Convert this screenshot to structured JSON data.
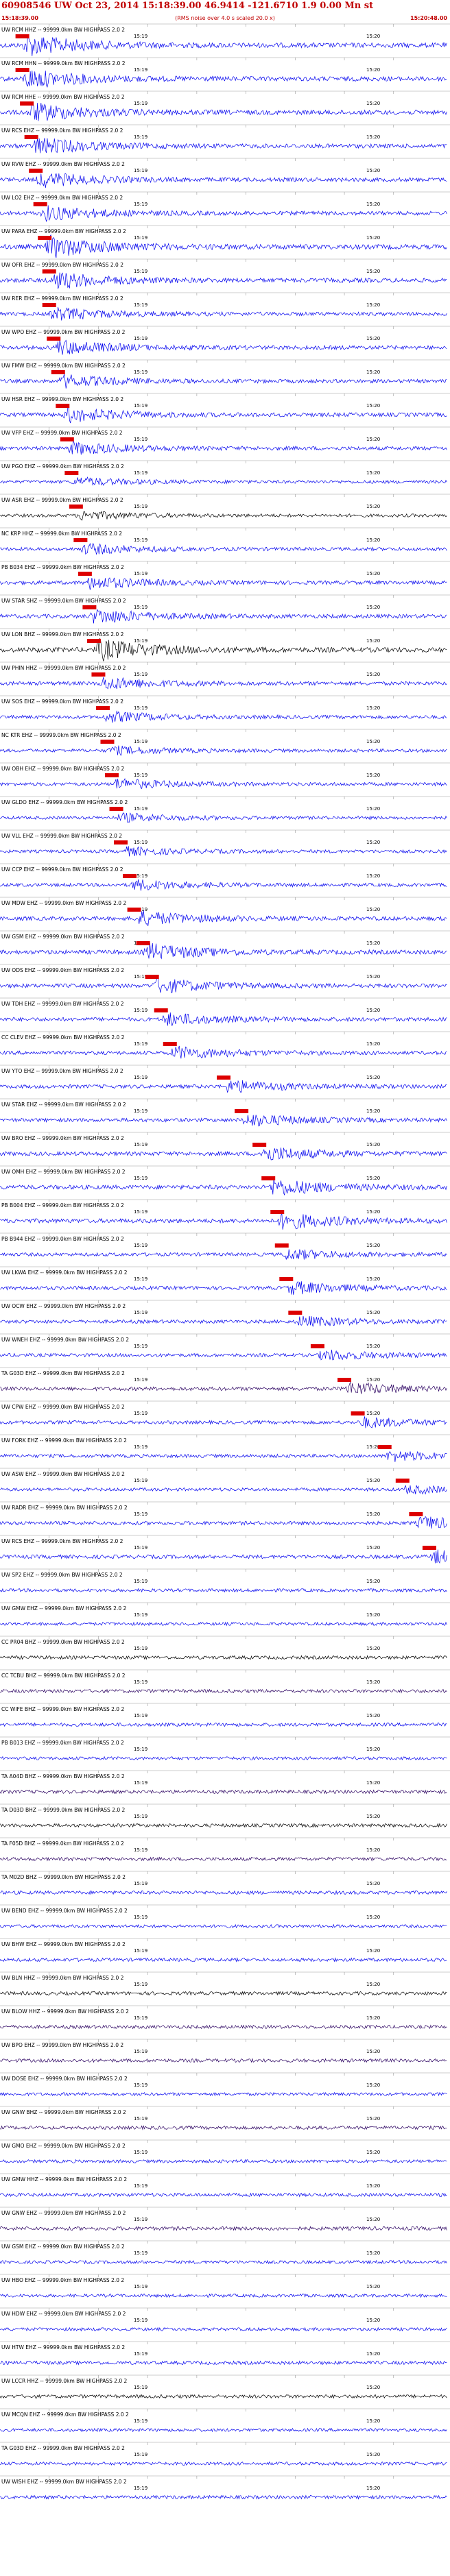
{
  "header": {
    "title": "60908546 UW Oct 23, 2014 15:18:39.00   46.9414 -121.6710   1.9 0.00 Mn st",
    "start_time": "15:18:39.00",
    "noise_note": "(RMS noise over 4.0 s scaled 20.0 x)",
    "end_time": "15:20:48.00"
  },
  "colors": {
    "blue": "#0000ee",
    "black": "#000000",
    "purple": "#2a0060",
    "label": "#000000",
    "marker": "#dd0000",
    "grid": "#9a9a9a"
  },
  "chart_data": {
    "type": "line",
    "title": "60908546 UW Oct 23, 2014 15:18:39.00   46.9414 -121.6710   1.9 0.00 Mn st",
    "time_window": [
      "15:18:39.00",
      "15:20:48.00"
    ],
    "tick_labels": [
      "15:19",
      "15:20"
    ],
    "traces": [
      {
        "label": "UW RCM HHZ -- 99999.0km BW  HIGHPASS  2.0  2",
        "color": "blue",
        "amp": 1.0,
        "pick": 0.05
      },
      {
        "label": "UW RCM HHN -- 99999.0km BW  HIGHPASS  2.0  2",
        "color": "blue",
        "amp": 0.9,
        "pick": 0.05
      },
      {
        "label": "UW RCM HHE -- 99999.0km BW  HIGHPASS  2.0  2",
        "color": "blue",
        "amp": 0.9,
        "pick": 0.06
      },
      {
        "label": "UW RCS EHZ -- 99999.0km BW  HIGHPASS  2.0  2",
        "color": "blue",
        "amp": 0.8,
        "pick": 0.07
      },
      {
        "label": "UW RVW EHZ -- 99999.0km BW  HIGHPASS  2.0  2",
        "color": "blue",
        "amp": 0.7,
        "pick": 0.08
      },
      {
        "label": "UW LO2 EHZ -- 99999.0km BW  HIGHPASS  2.0  2",
        "color": "blue",
        "amp": 0.7,
        "pick": 0.09
      },
      {
        "label": "UW PARA EHZ -- 99999.0km BW  HIGHPASS  2.0  2",
        "color": "blue",
        "amp": 1.0,
        "pick": 0.1
      },
      {
        "label": "UW OFR EHZ -- 99999.0km BW  HIGHPASS  2.0  2",
        "color": "blue",
        "amp": 0.8,
        "pick": 0.11
      },
      {
        "label": "UW RER EHZ -- 99999.0km BW  HIGHPASS  2.0  2",
        "color": "blue",
        "amp": 0.6,
        "pick": 0.11
      },
      {
        "label": "UW WPO EHZ -- 99999.0km BW  HIGHPASS  2.0  2",
        "color": "blue",
        "amp": 0.7,
        "pick": 0.12
      },
      {
        "label": "UW FMW EHZ -- 99999.0km BW  HIGHPASS  2.0  2",
        "color": "blue",
        "amp": 0.6,
        "pick": 0.13
      },
      {
        "label": "UW HSR EHZ -- 99999.0km BW  HIGHPASS  2.0  2",
        "color": "blue",
        "amp": 0.7,
        "pick": 0.14
      },
      {
        "label": "UW VFP EHZ -- 99999.0km BW  HIGHPASS  2.0  2",
        "color": "blue",
        "amp": 0.6,
        "pick": 0.15
      },
      {
        "label": "UW PGO EHZ -- 99999.0km BW  HIGHPASS  2.0  2",
        "color": "blue",
        "amp": 0.4,
        "pick": 0.16
      },
      {
        "label": "UW ASR EHZ -- 99999.0km BW  HIGHPASS  2.0  2",
        "color": "black",
        "amp": 0.4,
        "pick": 0.17
      },
      {
        "label": "NC KRP HHZ -- 99999.0km BW  HIGHPASS  2.0  2",
        "color": "blue",
        "amp": 0.5,
        "pick": 0.18
      },
      {
        "label": "PB B034 EHZ -- 99999.0km BW  HIGHPASS  2.0  2",
        "color": "blue",
        "amp": 0.6,
        "pick": 0.19
      },
      {
        "label": "UW STAR SHZ -- 99999.0km BW  HIGHPASS  2.0  2",
        "color": "blue",
        "amp": 0.7,
        "pick": 0.2
      },
      {
        "label": "UW LON BHZ -- 99999.0km BW  HIGHPASS  2.0  2",
        "color": "black",
        "amp": 1.0,
        "pick": 0.21
      },
      {
        "label": "UW PHIN HHZ -- 99999.0km BW  HIGHPASS  2.0  2",
        "color": "blue",
        "amp": 0.6,
        "pick": 0.22
      },
      {
        "label": "UW SOS EHZ -- 99999.0km BW  HIGHPASS  2.0  2",
        "color": "blue",
        "amp": 0.5,
        "pick": 0.23
      },
      {
        "label": "NC KTR EHZ -- 99999.0km BW  HIGHPASS  2.0  2",
        "color": "blue",
        "amp": 0.4,
        "pick": 0.24
      },
      {
        "label": "UW OBH EHZ -- 99999.0km BW  HIGHPASS  2.0  2",
        "color": "blue",
        "amp": 0.5,
        "pick": 0.25
      },
      {
        "label": "UW GLDO EHZ -- 99999.0km BW  HIGHPASS  2.0  2",
        "color": "blue",
        "amp": 0.4,
        "pick": 0.26
      },
      {
        "label": "UW VLL EHZ -- 99999.0km BW  HIGHPASS  2.0  2",
        "color": "blue",
        "amp": 0.4,
        "pick": 0.27
      },
      {
        "label": "UW CCP EHZ -- 99999.0km BW  HIGHPASS  2.0  2",
        "color": "blue",
        "amp": 0.5,
        "pick": 0.29
      },
      {
        "label": "UW MDW EHZ -- 99999.0km BW  HIGHPASS  2.0  2",
        "color": "blue",
        "amp": 0.7,
        "pick": 0.3
      },
      {
        "label": "UW GSM EHZ -- 99999.0km BW  HIGHPASS  2.0  2",
        "color": "blue",
        "amp": 0.8,
        "pick": 0.32
      },
      {
        "label": "UW ODS EHZ -- 99999.0km BW  HIGHPASS  2.0  2",
        "color": "blue",
        "amp": 0.7,
        "pick": 0.34
      },
      {
        "label": "UW TDH EHZ -- 99999.0km BW  HIGHPASS  2.0  2",
        "color": "blue",
        "amp": 0.6,
        "pick": 0.36
      },
      {
        "label": "CC CLEV EHZ -- 99999.0km BW  HIGHPASS  2.0  2",
        "color": "blue",
        "amp": 0.6,
        "pick": 0.38
      },
      {
        "label": "UW YTO EHZ -- 99999.0km BW  HIGHPASS  2.0  2",
        "color": "blue",
        "amp": 0.6,
        "pick": 0.5
      },
      {
        "label": "UW STAR EHZ -- 99999.0km BW  HIGHPASS  2.0  2",
        "color": "blue",
        "amp": 0.6,
        "pick": 0.54
      },
      {
        "label": "UW BRO EHZ -- 99999.0km BW  HIGHPASS  2.0  2",
        "color": "blue",
        "amp": 0.7,
        "pick": 0.58
      },
      {
        "label": "UW OMH EHZ -- 99999.0km BW  HIGHPASS  2.0  2",
        "color": "blue",
        "amp": 0.8,
        "pick": 0.6
      },
      {
        "label": "PB B004 EHZ -- 99999.0km BW  HIGHPASS  2.0  2",
        "color": "blue",
        "amp": 0.8,
        "pick": 0.62
      },
      {
        "label": "PB B944 EHZ -- 99999.0km BW  HIGHPASS  2.0  2",
        "color": "blue",
        "amp": 0.5,
        "pick": 0.63
      },
      {
        "label": "UW LKWA EHZ -- 99999.0km BW  HIGHPASS  2.0  2",
        "color": "blue",
        "amp": 0.6,
        "pick": 0.64
      },
      {
        "label": "UW OCW EHZ -- 99999.0km BW  HIGHPASS  2.0  2",
        "color": "blue",
        "amp": 0.5,
        "pick": 0.66
      },
      {
        "label": "UW WNEH EHZ -- 99999.0km BW  HIGHPASS  2.0  2",
        "color": "blue",
        "amp": 0.5,
        "pick": 0.71
      },
      {
        "label": "TA G03D EHZ -- 99999.0km BW  HIGHPASS  2.0  2",
        "color": "purple",
        "amp": 0.6,
        "pick": 0.77
      },
      {
        "label": "UW CPW EHZ -- 99999.0km BW  HIGHPASS  2.0  2",
        "color": "blue",
        "amp": 0.5,
        "pick": 0.8
      },
      {
        "label": "UW FORK EHZ -- 99999.0km BW  HIGHPASS  2.0  2",
        "color": "blue",
        "amp": 0.5,
        "pick": 0.86
      },
      {
        "label": "UW ASW EHZ -- 99999.0km BW  HIGHPASS  2.0  2",
        "color": "blue",
        "amp": 0.4,
        "pick": 0.9
      },
      {
        "label": "UW RADR EHZ -- 99999.0km BW  HIGHPASS  2.0  2",
        "color": "blue",
        "amp": 0.6,
        "pick": 0.93
      },
      {
        "label": "UW RCS EHZ -- 99999.0km BW  HIGHPASS  2.0  2",
        "color": "blue",
        "amp": 0.6,
        "pick": 0.96
      },
      {
        "label": "UW SP2 EHZ -- 99999.0km BW  HIGHPASS  2.0  2",
        "color": "blue",
        "amp": 0.4,
        "pick": null
      },
      {
        "label": "UW GMW EHZ -- 99999.0km BW  HIGHPASS  2.0  2",
        "color": "blue",
        "amp": 0.4,
        "pick": null
      },
      {
        "label": "CC PR04 BHZ -- 99999.0km BW  HIGHPASS  2.0  2",
        "color": "black",
        "amp": 0.5,
        "pick": null
      },
      {
        "label": "CC TCBU BHZ -- 99999.0km BW  HIGHPASS  2.0  2",
        "color": "purple",
        "amp": 0.5,
        "pick": null
      },
      {
        "label": "CC WIFE BHZ -- 99999.0km BW  HIGHPASS  2.0  2",
        "color": "blue",
        "amp": 0.5,
        "pick": null
      },
      {
        "label": "PB B013 EHZ -- 99999.0km BW  HIGHPASS  2.0  2",
        "color": "blue",
        "amp": 0.4,
        "pick": null
      },
      {
        "label": "TA A04D BHZ -- 99999.0km BW  HIGHPASS  2.0  2",
        "color": "purple",
        "amp": 0.5,
        "pick": null
      },
      {
        "label": "TA D03D BHZ -- 99999.0km BW  HIGHPASS  2.0  2",
        "color": "black",
        "amp": 0.5,
        "pick": null
      },
      {
        "label": "TA F05D BHZ -- 99999.0km BW  HIGHPASS  2.0  2",
        "color": "purple",
        "amp": 0.5,
        "pick": null
      },
      {
        "label": "TA M02D BHZ -- 99999.0km BW  HIGHPASS  2.0  2",
        "color": "blue",
        "amp": 0.5,
        "pick": null
      },
      {
        "label": "UW BEND EHZ -- 99999.0km BW  HIGHPASS  2.0  2",
        "color": "blue",
        "amp": 0.4,
        "pick": null
      },
      {
        "label": "UW BHW EHZ -- 99999.0km BW  HIGHPASS  2.0  2",
        "color": "blue",
        "amp": 0.5,
        "pick": null
      },
      {
        "label": "UW BLN HHZ -- 99999.0km BW  HIGHPASS  2.0  2",
        "color": "black",
        "amp": 0.5,
        "pick": null
      },
      {
        "label": "UW BLOW HHZ -- 99999.0km BW  HIGHPASS  2.0  2",
        "color": "purple",
        "amp": 0.5,
        "pick": null
      },
      {
        "label": "UW BPO EHZ -- 99999.0km BW  HIGHPASS  2.0  2",
        "color": "purple",
        "amp": 0.5,
        "pick": null
      },
      {
        "label": "UW DOSE EHZ -- 99999.0km BW  HIGHPASS  2.0  2",
        "color": "blue",
        "amp": 0.4,
        "pick": null
      },
      {
        "label": "UW GNW BHZ -- 99999.0km BW  HIGHPASS  2.0  2",
        "color": "purple",
        "amp": 0.5,
        "pick": null
      },
      {
        "label": "UW GMO EHZ -- 99999.0km BW  HIGHPASS  2.0  2",
        "color": "blue",
        "amp": 0.4,
        "pick": null
      },
      {
        "label": "UW GMW HHZ -- 99999.0km BW  HIGHPASS  2.0  2",
        "color": "blue",
        "amp": 0.5,
        "pick": null
      },
      {
        "label": "UW GNW EHZ -- 99999.0km BW  HIGHPASS  2.0  2",
        "color": "purple",
        "amp": 0.6,
        "pick": null
      },
      {
        "label": "UW GSM EHZ -- 99999.0km BW  HIGHPASS  2.0  2",
        "color": "blue",
        "amp": 0.4,
        "pick": null
      },
      {
        "label": "UW HBO EHZ -- 99999.0km BW  HIGHPASS  2.0  2",
        "color": "blue",
        "amp": 0.4,
        "pick": null
      },
      {
        "label": "UW HDW EHZ -- 99999.0km BW  HIGHPASS  2.0  2",
        "color": "blue",
        "amp": 0.4,
        "pick": null
      },
      {
        "label": "UW HTW EHZ -- 99999.0km BW  HIGHPASS  2.0  2",
        "color": "blue",
        "amp": 0.5,
        "pick": null
      },
      {
        "label": "UW LCCR HHZ -- 99999.0km BW  HIGHPASS  2.0  2",
        "color": "black",
        "amp": 0.5,
        "pick": null
      },
      {
        "label": "UW MCQN EHZ -- 99999.0km BW  HIGHPASS  2.0  2",
        "color": "blue",
        "amp": 0.4,
        "pick": null
      },
      {
        "label": "TA G03D EHZ -- 99999.0km BW  HIGHPASS  2.0  2",
        "color": "blue",
        "amp": 0.4,
        "pick": null
      },
      {
        "label": "UW WISH EHZ -- 99999.0km BW  HIGHPASS  2.0  2",
        "color": "blue",
        "amp": 0.5,
        "pick": null
      }
    ]
  }
}
